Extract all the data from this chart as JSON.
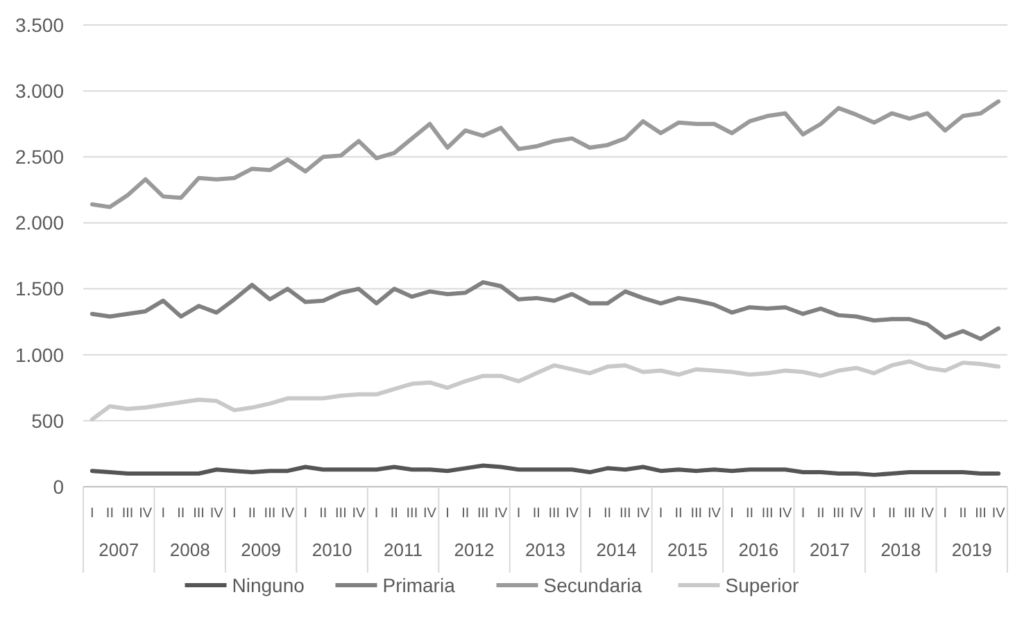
{
  "chart_data": {
    "type": "line",
    "categories": [
      "I",
      "II",
      "III",
      "IV",
      "I",
      "II",
      "III",
      "IV",
      "I",
      "II",
      "III",
      "IV",
      "I",
      "II",
      "III",
      "IV",
      "I",
      "II",
      "III",
      "IV",
      "I",
      "II",
      "III",
      "IV",
      "I",
      "II",
      "III",
      "IV",
      "I",
      "II",
      "III",
      "IV",
      "I",
      "II",
      "III",
      "IV",
      "I",
      "II",
      "III",
      "IV",
      "I",
      "II",
      "III",
      "IV",
      "I",
      "II",
      "III",
      "IV",
      "I",
      "II",
      "III",
      "IV"
    ],
    "series": [
      {
        "name": "Ninguno",
        "color": "#555555",
        "values": [
          120,
          110,
          100,
          100,
          100,
          100,
          100,
          130,
          120,
          110,
          120,
          120,
          150,
          130,
          130,
          130,
          130,
          150,
          130,
          130,
          120,
          140,
          160,
          150,
          130,
          130,
          130,
          130,
          110,
          140,
          130,
          150,
          120,
          130,
          120,
          130,
          120,
          130,
          130,
          130,
          110,
          110,
          100,
          100,
          90,
          100,
          110,
          110,
          110,
          110,
          100,
          100
        ]
      },
      {
        "name": "Primaria",
        "color": "#808080",
        "values": [
          1310,
          1290,
          1310,
          1330,
          1410,
          1290,
          1370,
          1320,
          1420,
          1530,
          1420,
          1500,
          1400,
          1410,
          1470,
          1500,
          1390,
          1500,
          1440,
          1480,
          1460,
          1470,
          1550,
          1520,
          1420,
          1430,
          1410,
          1460,
          1390,
          1390,
          1480,
          1430,
          1390,
          1430,
          1410,
          1380,
          1320,
          1360,
          1350,
          1360,
          1310,
          1350,
          1300,
          1290,
          1260,
          1270,
          1270,
          1230,
          1130,
          1180,
          1120,
          1200
        ]
      },
      {
        "name": "Secundaria",
        "color": "#9a9a9a",
        "values": [
          2140,
          2120,
          2210,
          2330,
          2200,
          2190,
          2340,
          2330,
          2340,
          2410,
          2400,
          2480,
          2390,
          2500,
          2510,
          2620,
          2490,
          2530,
          2640,
          2750,
          2570,
          2700,
          2660,
          2720,
          2560,
          2580,
          2620,
          2640,
          2570,
          2590,
          2640,
          2770,
          2680,
          2760,
          2750,
          2750,
          2680,
          2770,
          2810,
          2830,
          2670,
          2750,
          2870,
          2820,
          2760,
          2830,
          2790,
          2830,
          2700,
          2810,
          2830,
          2920
        ]
      },
      {
        "name": "Superior",
        "color": "#c9c9c9",
        "values": [
          510,
          610,
          590,
          600,
          620,
          640,
          660,
          650,
          580,
          600,
          630,
          670,
          670,
          670,
          690,
          700,
          700,
          740,
          780,
          790,
          750,
          800,
          840,
          840,
          800,
          860,
          920,
          890,
          860,
          910,
          920,
          870,
          880,
          850,
          890,
          880,
          870,
          850,
          860,
          880,
          870,
          840,
          880,
          900,
          860,
          920,
          950,
          900,
          880,
          940,
          930,
          910
        ]
      }
    ],
    "annotations": [
      "2007",
      "2008",
      "2009",
      "2010",
      "2011",
      "2012",
      "2013",
      "2014",
      "2015",
      "2016",
      "2017",
      "2018",
      "2019"
    ],
    "ylim": [
      0,
      3500
    ],
    "yticks": [
      0,
      500,
      {
        "value": 1000,
        "label": "1.000"
      },
      {
        "value": 1500,
        "label": "1.500"
      },
      {
        "value": 2000,
        "label": "2.000"
      },
      {
        "value": 2500,
        "label": "2.500"
      },
      {
        "value": 3000,
        "label": "3.000"
      },
      {
        "value": 3500,
        "label": "3.500"
      }
    ],
    "grid": "y",
    "legend": "bottom",
    "line_style": "solid"
  }
}
